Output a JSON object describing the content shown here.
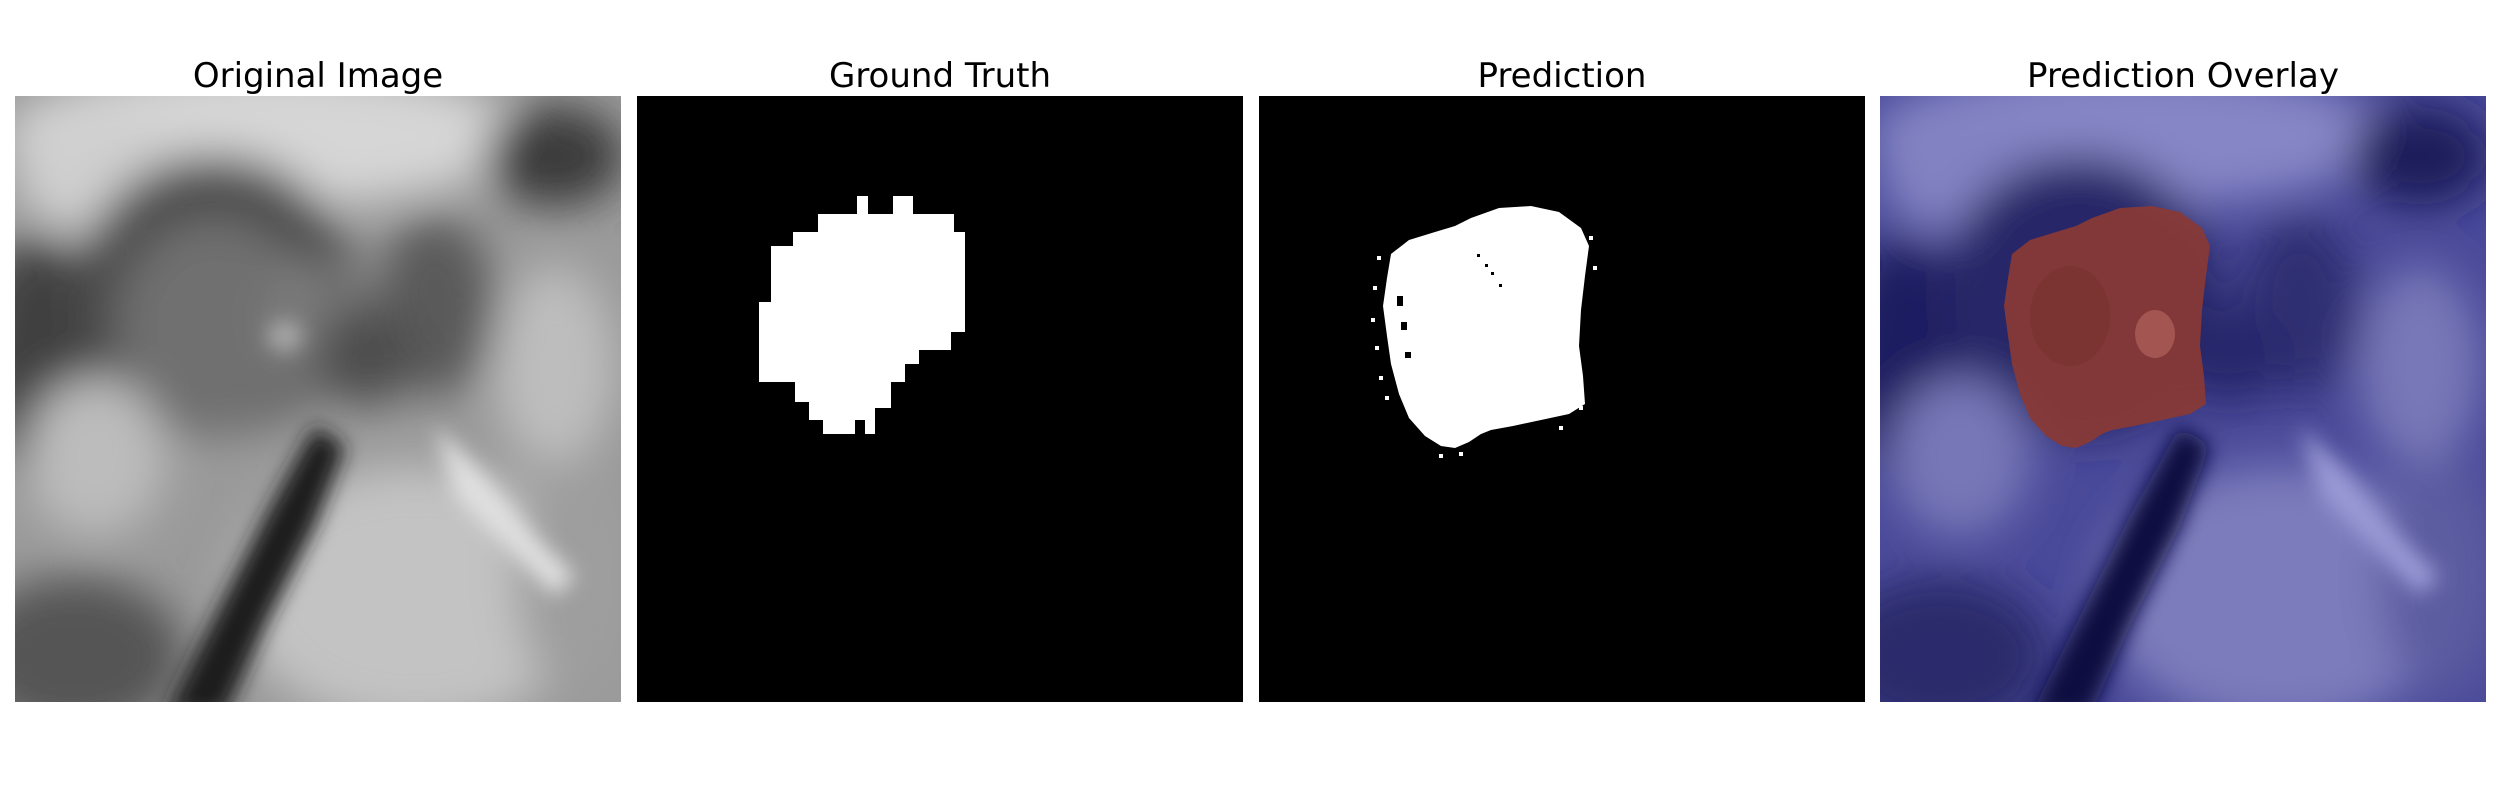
{
  "panels": [
    {
      "title": "Original Image"
    },
    {
      "title": "Ground Truth"
    },
    {
      "title": "Prediction"
    },
    {
      "title": "Prediction Overlay"
    }
  ],
  "colors": {
    "background": "#ffffff",
    "mask_foreground": "#ffffff",
    "mask_background": "#000000",
    "overlay_base": "#3a3a8e",
    "overlay_region": "#8a3a34"
  }
}
